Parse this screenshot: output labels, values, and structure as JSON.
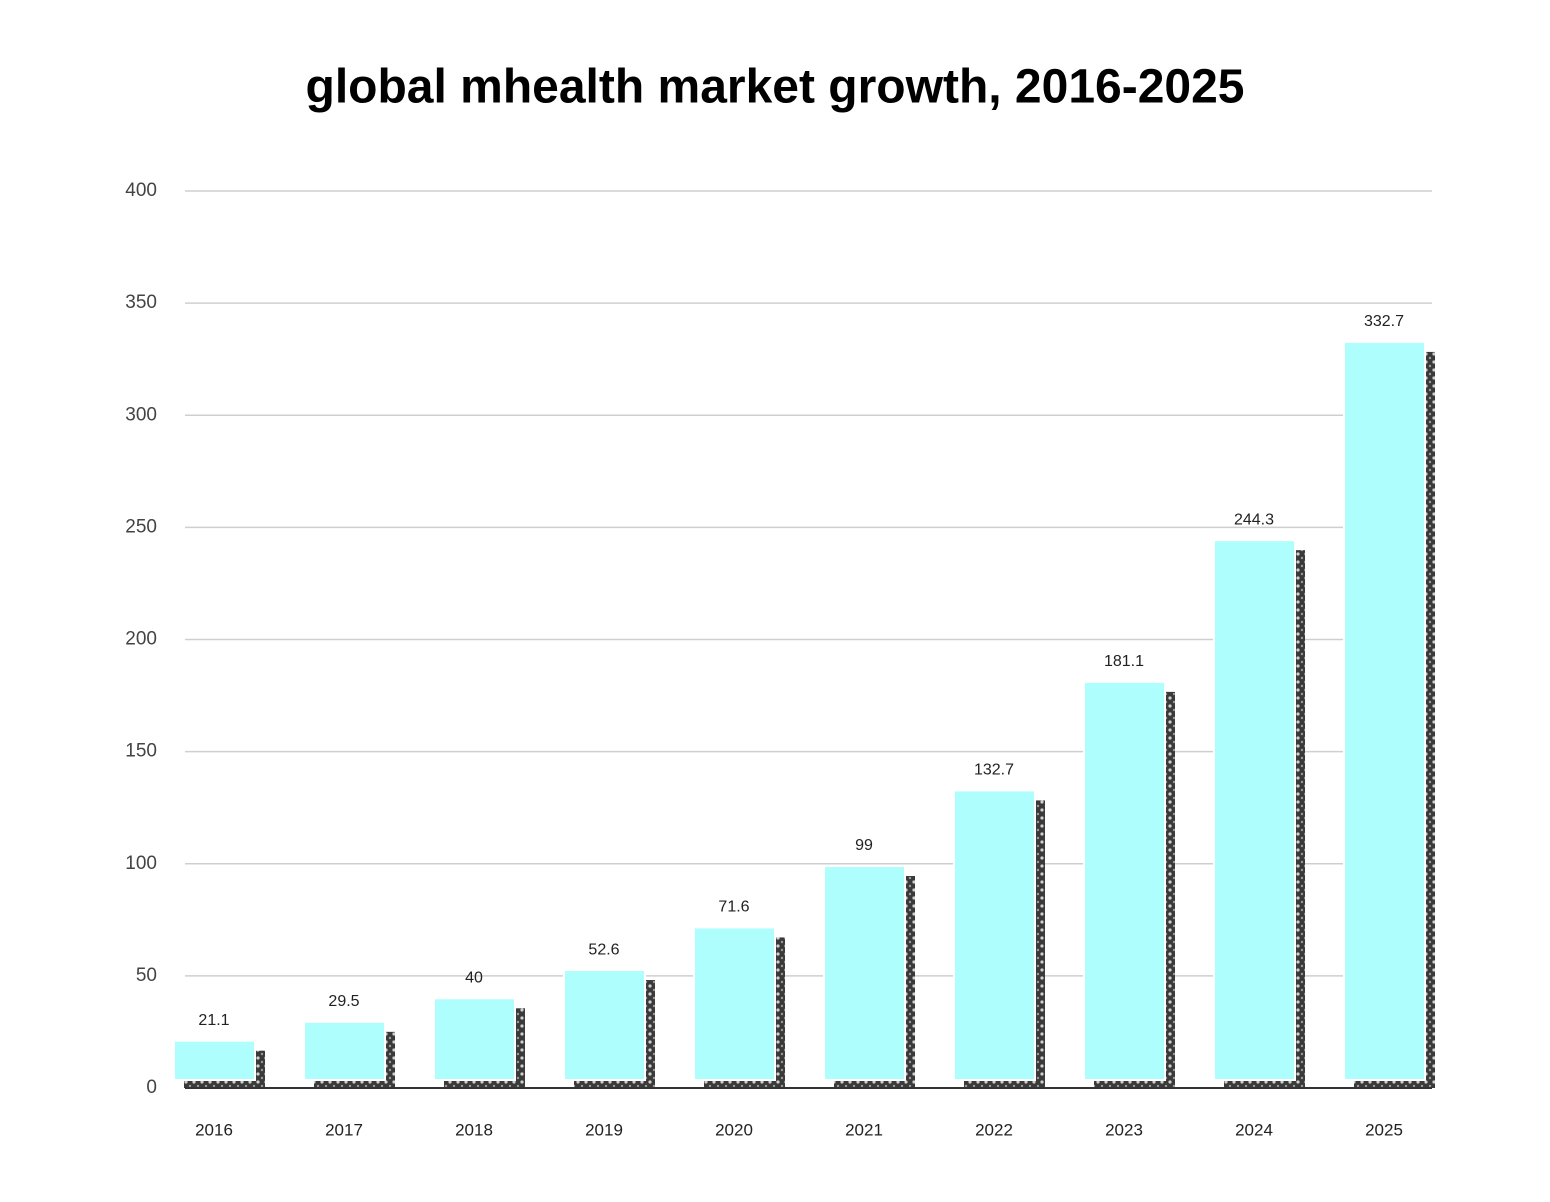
{
  "chart_data": {
    "type": "bar",
    "title": "global mhealth market growth, 2016-2025",
    "categories": [
      "2016",
      "2017",
      "2018",
      "2019",
      "2020",
      "2021",
      "2022",
      "2023",
      "2024",
      "2025"
    ],
    "values": [
      21.1,
      29.5,
      40,
      52.6,
      71.6,
      99,
      132.7,
      181.1,
      244.3,
      332.7
    ],
    "color": "#adfefc",
    "ylim": [
      0,
      400
    ],
    "yticks": [
      0,
      50,
      100,
      150,
      200,
      250,
      300,
      350,
      400
    ],
    "grid": true
  }
}
